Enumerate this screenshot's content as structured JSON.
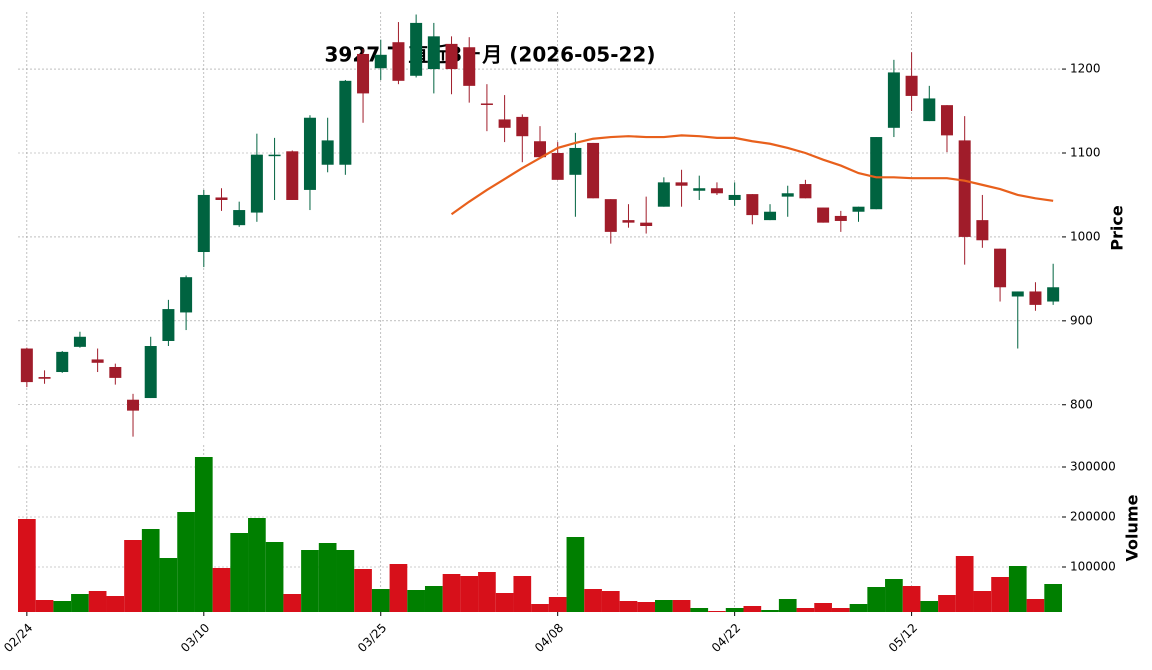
{
  "chart_data": {
    "type": "candlestick",
    "title": "3927.T 直近3ヶ月 (2026-05-22)",
    "categories": [
      "02/24",
      null,
      null,
      null,
      null,
      null,
      null,
      null,
      null,
      null,
      "03/10",
      null,
      null,
      null,
      null,
      null,
      null,
      null,
      null,
      null,
      "03/25",
      null,
      null,
      null,
      null,
      null,
      null,
      null,
      null,
      null,
      "04/08",
      null,
      null,
      null,
      null,
      null,
      null,
      null,
      null,
      null,
      "04/22",
      null,
      null,
      null,
      null,
      null,
      null,
      null,
      null,
      null,
      "05/12",
      null,
      null,
      null,
      null,
      null,
      null,
      null,
      null
    ],
    "open": [
      867,
      833,
      839,
      869,
      854,
      845,
      806,
      808,
      876,
      910,
      982,
      1047,
      1014,
      1029,
      1097,
      1102,
      1056,
      1086,
      1086,
      1218,
      1201,
      1232,
      1192,
      1200,
      1230,
      1226,
      1159,
      1140,
      1143,
      1114,
      1100,
      1074,
      1112,
      1045,
      1020,
      1017,
      1036,
      1065,
      1055,
      1058,
      1044,
      1051,
      1020,
      1048,
      1063,
      1035,
      1025,
      1030,
      1033,
      1130,
      1192,
      1138,
      1157,
      1115,
      1020,
      986,
      929,
      935,
      923
    ],
    "high": [
      868,
      841,
      864,
      887,
      867,
      849,
      813,
      881,
      925,
      954,
      1056,
      1058,
      1042,
      1123,
      1118,
      1103,
      1145,
      1142,
      1187,
      1224,
      1235,
      1256,
      1265,
      1255,
      1239,
      1238,
      1182,
      1169,
      1146,
      1132,
      1113,
      1124,
      1112,
      1045,
      1039,
      1048,
      1071,
      1080,
      1073,
      1065,
      1065,
      1051,
      1039,
      1061,
      1068,
      1035,
      1031,
      1036,
      1119,
      1211,
      1220,
      1180,
      1157,
      1144,
      1050,
      986,
      935,
      946,
      968
    ],
    "low": [
      821,
      825,
      838,
      868,
      839,
      824,
      762,
      808,
      870,
      889,
      964,
      1031,
      1012,
      1018,
      1044,
      1044,
      1032,
      1077,
      1074,
      1136,
      1187,
      1182,
      1190,
      1171,
      1170,
      1160,
      1126,
      1113,
      1089,
      1095,
      1068,
      1024,
      1046,
      992,
      1011,
      1004,
      1036,
      1036,
      1044,
      1050,
      1037,
      1015,
      1020,
      1024,
      1046,
      1017,
      1006,
      1018,
      1033,
      1119,
      1150,
      1138,
      1101,
      967,
      987,
      923,
      867,
      912,
      919
    ],
    "close": [
      827,
      831,
      863,
      881,
      850,
      832,
      793,
      870,
      914,
      952,
      1050,
      1044,
      1032,
      1098,
      1098,
      1044,
      1142,
      1115,
      1186,
      1171,
      1217,
      1186,
      1255,
      1239,
      1200,
      1180,
      1158,
      1130,
      1120,
      1095,
      1068,
      1106,
      1046,
      1006,
      1017,
      1013,
      1065,
      1061,
      1058,
      1052,
      1050,
      1026,
      1030,
      1052,
      1046,
      1017,
      1019,
      1036,
      1119,
      1196,
      1168,
      1165,
      1121,
      1000,
      996,
      940,
      935,
      919,
      940
    ],
    "volume": [
      196000,
      34000,
      32000,
      46000,
      52000,
      42000,
      154000,
      176000,
      118000,
      210000,
      320000,
      98000,
      168000,
      198000,
      150000,
      46000,
      134000,
      148000,
      134000,
      96000,
      56000,
      106000,
      54000,
      62000,
      86000,
      82000,
      90000,
      48000,
      82000,
      26000,
      40000,
      160000,
      56000,
      52000,
      32000,
      30000,
      34000,
      34000,
      18000,
      12000,
      18000,
      22000,
      14000,
      36000,
      18000,
      28000,
      18000,
      26000,
      60000,
      76000,
      62000,
      32000,
      44000,
      122000,
      52000,
      80000,
      102000,
      36000,
      66000
    ],
    "ma": [
      null,
      null,
      null,
      null,
      null,
      null,
      null,
      null,
      null,
      null,
      null,
      null,
      null,
      null,
      null,
      null,
      null,
      null,
      null,
      null,
      null,
      null,
      null,
      null,
      1027,
      1042,
      1056,
      1069,
      1082,
      1094,
      1106,
      1112,
      1117,
      1119,
      1120,
      1119,
      1119,
      1121,
      1120,
      1118,
      1118,
      1114,
      1111,
      1106,
      1100,
      1092,
      1085,
      1076,
      1071,
      1071,
      1070,
      1070,
      1070,
      1067,
      1062,
      1057,
      1050,
      1046,
      1043
    ],
    "up_color": "#006340",
    "down_color": "#a01c2a",
    "volume_up_color": "#007f00",
    "volume_down_color": "#d7101a",
    "ma_color": "#e8601c",
    "ylim": [
      758,
      1268
    ],
    "yticks": [
      800,
      900,
      1000,
      1100,
      1200
    ],
    "ylabel": "Price",
    "volume_ylim": [
      10000,
      344000
    ],
    "volume_yticks": [
      100000,
      200000,
      300000
    ],
    "volume_label": "Volume",
    "grid": true
  }
}
